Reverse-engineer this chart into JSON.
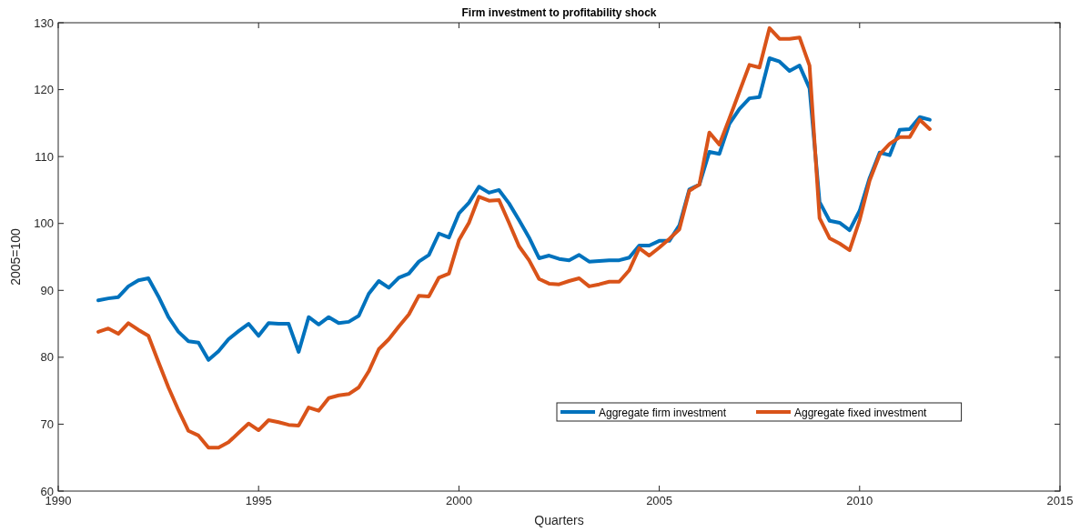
{
  "chart_data": {
    "type": "line",
    "title": "Firm investment to profitability shock",
    "xlabel": "Quarters",
    "ylabel": "2005=100",
    "x": [
      1991,
      1991.25,
      1991.5,
      1991.75,
      1992,
      1992.25,
      1992.5,
      1992.75,
      1993,
      1993.25,
      1993.5,
      1993.75,
      1994,
      1994.25,
      1994.5,
      1994.75,
      1995,
      1995.25,
      1995.5,
      1995.75,
      1996,
      1996.25,
      1996.5,
      1996.75,
      1997,
      1997.25,
      1997.5,
      1997.75,
      1998,
      1998.25,
      1998.5,
      1998.75,
      1999,
      1999.25,
      1999.5,
      1999.75,
      2000,
      2000.25,
      2000.5,
      2000.75,
      2001,
      2001.25,
      2001.5,
      2001.75,
      2002,
      2002.25,
      2002.5,
      2002.75,
      2003,
      2003.25,
      2003.5,
      2003.75,
      2004,
      2004.25,
      2004.5,
      2004.75,
      2005,
      2005.25,
      2005.5,
      2005.75,
      2006,
      2006.25,
      2006.5,
      2006.75,
      2007,
      2007.25,
      2007.5,
      2007.75,
      2008,
      2008.25,
      2008.5,
      2008.75,
      2009,
      2009.25,
      2009.5,
      2009.75,
      2010,
      2010.25,
      2010.5,
      2010.75,
      2011,
      2011.25,
      2011.5,
      2011.75
    ],
    "series": [
      {
        "name": "Aggregate firm investment",
        "color": "#0072bd",
        "values": [
          88.5,
          88.8,
          89,
          90.6,
          91.5,
          91.8,
          89.1,
          86,
          83.8,
          82.4,
          82.2,
          79.6,
          80.9,
          82.7,
          83.9,
          85,
          83.2,
          85.1,
          85,
          85,
          80.8,
          86,
          84.9,
          86,
          85.1,
          85.3,
          86.2,
          89.5,
          91.4,
          90.4,
          91.9,
          92.5,
          94.3,
          95.3,
          98.5,
          97.9,
          101.5,
          103.1,
          105.5,
          104.6,
          105,
          103,
          100.5,
          97.9,
          94.8,
          95.2,
          94.7,
          94.5,
          95.3,
          94.3,
          94.4,
          94.5,
          94.5,
          94.9,
          96.7,
          96.7,
          97.4,
          97.4,
          99.7,
          105.1,
          105.8,
          110.7,
          110.4,
          114.9,
          117.1,
          118.7,
          118.9,
          124.7,
          124.2,
          122.8,
          123.6,
          120.2,
          103.2,
          100.4,
          100.1,
          99,
          101.9,
          106.8,
          110.6,
          110.2,
          114,
          114.1,
          115.9,
          115.5
        ]
      },
      {
        "name": "Aggregate fixed investment",
        "color": "#d95319",
        "values": [
          83.8,
          84.3,
          83.5,
          85.1,
          84.1,
          83.2,
          79.3,
          75.5,
          72.1,
          69,
          68.3,
          66.5,
          66.5,
          67.3,
          68.7,
          70.1,
          69.1,
          70.6,
          70.3,
          69.9,
          69.8,
          72.5,
          72,
          73.9,
          74.3,
          74.5,
          75.5,
          77.9,
          81.2,
          82.7,
          84.6,
          86.4,
          89.2,
          89.1,
          91.9,
          92.5,
          97.5,
          100.1,
          104,
          103.4,
          103.5,
          100.1,
          96.6,
          94.5,
          91.7,
          91,
          90.9,
          91.4,
          91.8,
          90.6,
          90.9,
          91.3,
          91.3,
          93,
          96.3,
          95.2,
          96.4,
          97.7,
          99.1,
          104.9,
          105.8,
          113.6,
          111.8,
          115.7,
          119.7,
          123.7,
          123.3,
          129.2,
          127.6,
          127.6,
          127.8,
          123.6,
          100.8,
          97.8,
          97,
          96,
          100.5,
          106.4,
          110.3,
          111.9,
          112.9,
          112.9,
          115.5,
          114.1
        ]
      }
    ],
    "xlim": [
      1990,
      2015
    ],
    "xticks": [
      1990,
      1995,
      2000,
      2005,
      2010,
      2015
    ],
    "ylim": [
      60,
      130
    ],
    "yticks": [
      60,
      70,
      80,
      90,
      100,
      110,
      120,
      130
    ],
    "grid": false,
    "legend": "bottom right",
    "marker": "none",
    "line_style": "solid"
  }
}
